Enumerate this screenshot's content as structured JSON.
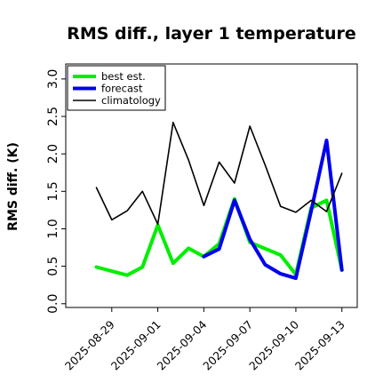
{
  "chart_data": {
    "type": "line",
    "title": "RMS diff., layer 1 temperature",
    "ylabel": "RMS diff. (K)",
    "xlabel": "",
    "ylim": [
      -0.05,
      3.2
    ],
    "xlim": [
      "2025-08-26",
      "2025-09-14"
    ],
    "yticks": [
      "0.0",
      "0.5",
      "1.0",
      "1.5",
      "2.0",
      "2.5",
      "3.0"
    ],
    "xticks": [
      {
        "date": "2025-08-29",
        "label": "2025-08-29",
        "color": "#000000"
      },
      {
        "date": "2025-09-01",
        "label": "2025-09-01",
        "color": "#000000"
      },
      {
        "date": "2025-09-04",
        "label": "2025-09-04",
        "color": "#228b22"
      },
      {
        "date": "2025-09-07",
        "label": "2025-09-07",
        "color": "#000000"
      },
      {
        "date": "2025-09-10",
        "label": "2025-09-10",
        "color": "#000000"
      },
      {
        "date": "2025-09-13",
        "label": "2025-09-13",
        "color": "#000000"
      }
    ],
    "legend_position": "top-left",
    "grid": false,
    "series": [
      {
        "name": "best est.",
        "color": "#00ee00",
        "x": [
          "2025-08-28",
          "2025-08-30",
          "2025-08-31",
          "2025-09-01",
          "2025-09-02",
          "2025-09-03",
          "2025-09-04",
          "2025-09-05",
          "2025-09-06",
          "2025-09-07",
          "2025-09-09",
          "2025-09-10",
          "2025-09-11",
          "2025-09-12",
          "2025-09-13"
        ],
        "values": [
          0.49,
          0.38,
          0.49,
          1.05,
          0.54,
          0.74,
          0.63,
          0.8,
          1.4,
          0.82,
          0.65,
          0.39,
          1.28,
          1.38,
          0.45
        ]
      },
      {
        "name": "forecast",
        "color": "#0000ee",
        "x": [
          "2025-09-04",
          "2025-09-05",
          "2025-09-06",
          "2025-09-07",
          "2025-09-08",
          "2025-09-09",
          "2025-09-10",
          "2025-09-11",
          "2025-09-12",
          "2025-09-13"
        ],
        "values": [
          0.63,
          0.73,
          1.38,
          0.86,
          0.52,
          0.4,
          0.34,
          1.24,
          2.18,
          0.45
        ]
      },
      {
        "name": "climatology",
        "color": "#000000",
        "x": [
          "2025-08-28",
          "2025-08-29",
          "2025-08-30",
          "2025-08-31",
          "2025-09-01",
          "2025-09-02",
          "2025-09-03",
          "2025-09-04",
          "2025-09-05",
          "2025-09-06",
          "2025-09-07",
          "2025-09-08",
          "2025-09-09",
          "2025-09-10",
          "2025-09-11",
          "2025-09-12",
          "2025-09-13"
        ],
        "values": [
          1.55,
          1.12,
          1.24,
          1.5,
          1.06,
          2.42,
          1.92,
          1.31,
          1.89,
          1.61,
          2.37,
          1.85,
          1.3,
          1.22,
          1.38,
          1.23,
          1.74
        ]
      }
    ]
  }
}
